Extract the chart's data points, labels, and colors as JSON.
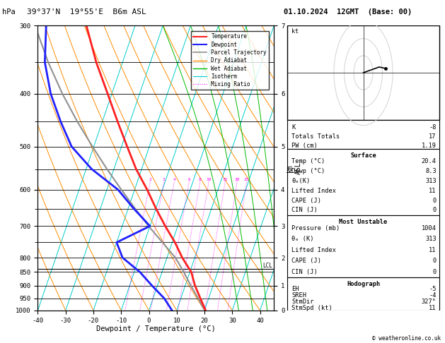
{
  "title_left": "39°37'N  19°55'E  B6m ASL",
  "title_right": "01.10.2024  12GMT  (Base: 00)",
  "xlabel": "Dewpoint / Temperature (°C)",
  "stats": {
    "K": "-8",
    "Totals_Totals": "17",
    "PW_cm": "1.19",
    "Surface_Temp": "20.4",
    "Surface_Dewp": "8.3",
    "Surface_theta_e": "313",
    "Surface_LI": "11",
    "Surface_CAPE": "0",
    "Surface_CIN": "0",
    "MU_Pressure": "1004",
    "MU_theta_e": "313",
    "MU_LI": "11",
    "MU_CAPE": "0",
    "MU_CIN": "0",
    "EH": "-5",
    "SREH": "-4",
    "StmDir": "327°",
    "StmSpd": "11"
  },
  "temperature_profile": {
    "pressure": [
      1000,
      950,
      900,
      850,
      800,
      750,
      700,
      650,
      600,
      550,
      500,
      450,
      400,
      350,
      300
    ],
    "temp": [
      20.4,
      17.0,
      13.5,
      10.5,
      5.5,
      1.0,
      -4.5,
      -10.0,
      -15.5,
      -22.0,
      -28.0,
      -34.5,
      -41.5,
      -49.5,
      -57.5
    ]
  },
  "dewpoint_profile": {
    "pressure": [
      1000,
      950,
      900,
      850,
      800,
      750,
      700,
      650,
      600,
      550,
      500,
      450,
      400,
      350,
      300
    ],
    "temp": [
      8.3,
      4.0,
      -2.0,
      -8.0,
      -16.0,
      -20.0,
      -10.0,
      -18.0,
      -26.0,
      -38.0,
      -48.0,
      -55.0,
      -62.0,
      -68.0,
      -72.0
    ]
  },
  "parcel_profile": {
    "pressure": [
      1004,
      950,
      900,
      850,
      820,
      800,
      750,
      700,
      650,
      600,
      550,
      500,
      450,
      400,
      350,
      300
    ],
    "temp": [
      20.4,
      16.2,
      12.0,
      7.8,
      5.0,
      3.0,
      -3.5,
      -10.5,
      -17.5,
      -24.8,
      -32.5,
      -40.5,
      -49.0,
      -57.8,
      -66.8,
      -76.0
    ]
  },
  "lcl_pressure": 840,
  "colors": {
    "temperature": "#ff2020",
    "dewpoint": "#2020ff",
    "parcel": "#909090",
    "dry_adiabat": "#ff8c00",
    "wet_adiabat": "#00bb00",
    "isotherm": "#00cccc",
    "mixing_ratio": "#ff00ff"
  },
  "pressure_levels_all": [
    300,
    350,
    400,
    450,
    500,
    550,
    600,
    650,
    700,
    750,
    800,
    850,
    900,
    950,
    1000
  ],
  "pressure_major": [
    300,
    400,
    500,
    600,
    700,
    800,
    850,
    900,
    950,
    1000
  ],
  "pressure_minor": [
    350,
    450,
    550,
    650,
    750
  ],
  "km_pressures": [
    1000,
    900,
    800,
    700,
    600,
    500,
    400,
    300
  ],
  "km_values": [
    "0",
    "1",
    "2",
    "3",
    "4",
    "5",
    "6",
    "7"
  ],
  "mixing_ratios": [
    2,
    3,
    4,
    6,
    8,
    10,
    15,
    20,
    25
  ],
  "isotherm_temps": [
    -40,
    -30,
    -20,
    -10,
    0,
    10,
    20,
    30,
    40
  ],
  "dry_adiabat_thetas": [
    -30,
    -20,
    -10,
    0,
    10,
    20,
    30,
    40,
    50,
    60,
    70,
    80,
    90,
    100,
    110,
    120
  ],
  "wet_adiabat_Ts": [
    -30,
    -20,
    -10,
    0,
    10,
    20,
    30,
    40
  ],
  "skew": 35.0,
  "t_min": -40,
  "t_max": 45,
  "p_min": 300,
  "p_max": 1000
}
